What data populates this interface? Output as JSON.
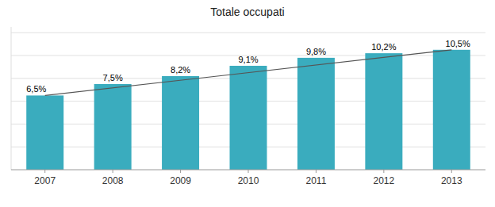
{
  "chart_data": {
    "type": "bar",
    "title": "Totale occupati",
    "categories": [
      "2007",
      "2008",
      "2009",
      "2010",
      "2011",
      "2012",
      "2013"
    ],
    "values": [
      6.5,
      7.5,
      8.2,
      9.1,
      9.8,
      10.2,
      10.5
    ],
    "value_labels": [
      "6,5%",
      "7,5%",
      "8,2%",
      "9,1%",
      "9,8%",
      "10,2%",
      "10,5%"
    ],
    "color": "#3AACBE",
    "ylim": [
      0,
      12.5
    ],
    "yticks": [
      2,
      4,
      6,
      8,
      10,
      12
    ],
    "grid": true,
    "data_labels": true,
    "tick_labels": "x"
  }
}
